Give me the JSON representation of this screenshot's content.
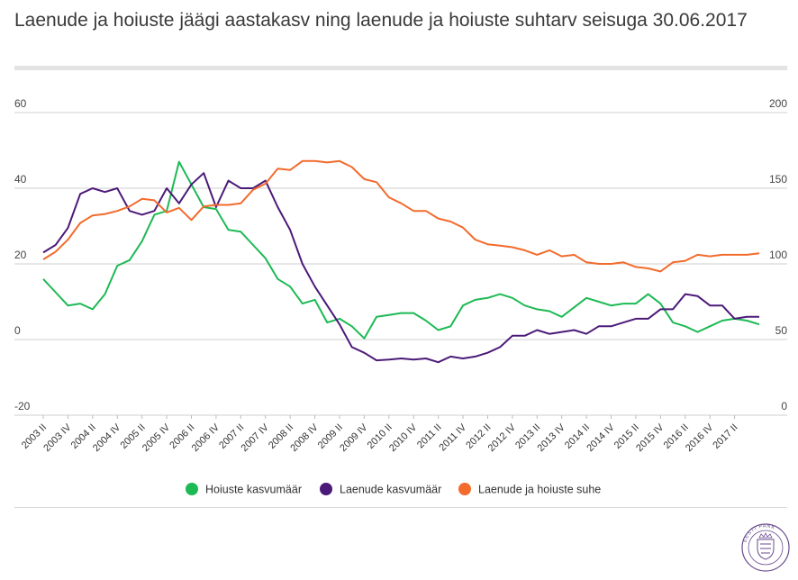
{
  "title": "Laenude ja hoiuste jäägi aastakasv ning laenude ja hoiuste suhtarv seisuga 30.06.2017",
  "seal_text": "EESTI PANK",
  "chart_data": {
    "type": "line",
    "title": "Laenude ja hoiuste jäägi aastakasv ning laenude ja hoiuste suhtarv seisuga 30.06.2017",
    "x_labels": [
      "2003 II",
      "2003 IV",
      "2004 II",
      "2004 IV",
      "2005 II",
      "2005 IV",
      "2006 II",
      "2006 IV",
      "2007 II",
      "2007 IV",
      "2008 II",
      "2008 IV",
      "2009 II",
      "2009 IV",
      "2010 II",
      "2010 IV",
      "2011 II",
      "2011 IV",
      "2012 II",
      "2012 IV",
      "2013 II",
      "2013 IV",
      "2014 II",
      "2014 IV",
      "2015 II",
      "2015 IV",
      "2016 II",
      "2016 IV",
      "2017 II"
    ],
    "y_left": {
      "min": -20,
      "max": 60,
      "ticks": [
        -20,
        0,
        20,
        40,
        60
      ]
    },
    "y_right": {
      "min": 0,
      "max": 200,
      "ticks": [
        0,
        50,
        100,
        150,
        200
      ]
    },
    "grid": true,
    "legend_position": "bottom",
    "series": [
      {
        "name": "Hoiuste kasvumäär",
        "color": "#1db954",
        "axis": "left",
        "values": [
          16,
          12.5,
          9,
          9.5,
          8,
          12,
          19.5,
          21,
          26,
          33,
          34,
          47,
          41,
          35,
          34.5,
          29,
          28.5,
          25,
          21.5,
          16,
          14,
          9.5,
          10.5,
          4.5,
          5.5,
          3.5,
          0.3,
          6,
          6.5,
          7,
          7,
          5,
          2.5,
          3.5,
          9,
          10.5,
          11,
          12,
          11,
          9,
          8,
          7.5,
          6,
          8.5,
          11,
          10,
          9,
          9.5,
          9.5,
          12,
          9.5,
          4.5,
          3.5,
          2,
          3.5,
          5,
          5.5,
          5,
          4
        ]
      },
      {
        "name": "Laenude kasvumäär",
        "color": "#4b1a78",
        "axis": "left",
        "values": [
          23,
          25,
          29.5,
          38.5,
          40,
          39,
          40,
          34,
          33,
          34,
          40,
          36,
          41,
          44,
          35,
          42,
          40,
          40,
          42,
          35,
          29,
          20,
          14,
          9,
          4,
          -2,
          -3.5,
          -5.5,
          -5.3,
          -5,
          -5.3,
          -5,
          -6,
          -4.5,
          -5,
          -4.5,
          -3.5,
          -2,
          1,
          1,
          2.5,
          1.5,
          2,
          2.5,
          1.5,
          3.5,
          3.5,
          4.5,
          5.5,
          5.5,
          8,
          8,
          12,
          11.5,
          9,
          9,
          5.5,
          6,
          6
        ]
      },
      {
        "name": "Laenude ja hoiuste suhe",
        "color": "#f26b2c",
        "axis": "right",
        "values": [
          103,
          108,
          116,
          127,
          132,
          133,
          135,
          138,
          143,
          142,
          134,
          137,
          129,
          138,
          139,
          139,
          140,
          149,
          153,
          163,
          162,
          168,
          168,
          167,
          168,
          164,
          156,
          154,
          144,
          140,
          135,
          135,
          130,
          128,
          124,
          116,
          113,
          112,
          111,
          109,
          106,
          109,
          105,
          106,
          101,
          100,
          100,
          101,
          98,
          97,
          95,
          101,
          102,
          106,
          105,
          106,
          106,
          106,
          107
        ]
      }
    ]
  }
}
